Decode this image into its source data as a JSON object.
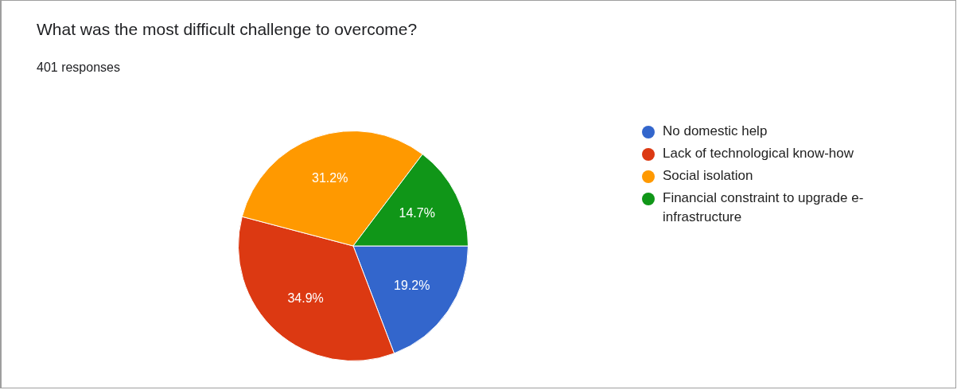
{
  "chart_data": {
    "type": "pie",
    "title": "What was the most difficult challenge to overcome?",
    "subtitle": "401 responses",
    "categories": [
      "No domestic help",
      "Lack of technological know-how",
      "Social isolation",
      "Financial constraint to upgrade e-infrastructure"
    ],
    "values": [
      19.2,
      34.9,
      31.2,
      14.7
    ],
    "value_labels": [
      "19.2%",
      "34.9%",
      "31.2%",
      "14.7%"
    ],
    "colors": [
      "#3366cc",
      "#dc3912",
      "#ff9900",
      "#109618"
    ],
    "legend": "right"
  }
}
